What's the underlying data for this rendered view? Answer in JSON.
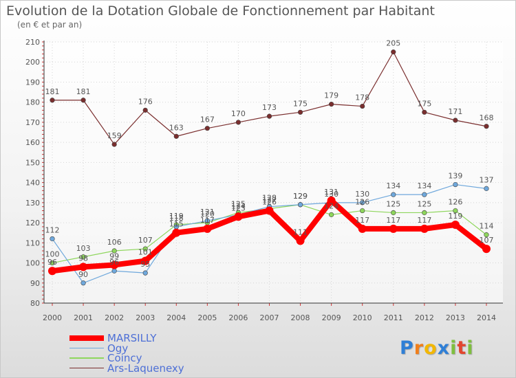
{
  "chart_data": {
    "type": "line",
    "title": "Evolution de la Dotation Globale de Fonctionnement par Habitant",
    "subtitle": "(en € et par an)",
    "xlabel": "",
    "ylabel": "",
    "ylim": [
      80,
      210
    ],
    "yticks": [
      80,
      90,
      100,
      110,
      120,
      130,
      140,
      150,
      160,
      170,
      180,
      190,
      200,
      210
    ],
    "categories": [
      "2000",
      "2001",
      "2002",
      "2003",
      "2004",
      "2005",
      "2006",
      "2007",
      "2008",
      "2009",
      "2010",
      "2011",
      "2012",
      "2013",
      "2014"
    ],
    "legend_position": "bottom-left",
    "series": [
      {
        "name": "Ars-Laquenexy",
        "color": "#7a2e2e",
        "width": 1.2,
        "values": [
          181,
          181,
          159,
          176,
          163,
          167,
          170,
          173,
          175,
          179,
          178,
          205,
          175,
          171,
          168
        ]
      },
      {
        "name": "Coincy",
        "color": "#8ed65c",
        "width": 1.2,
        "values": [
          100,
          103,
          106,
          107,
          119,
          120,
          125,
          127,
          129,
          124,
          126,
          125,
          125,
          126,
          114
        ]
      },
      {
        "name": "Ogy",
        "color": "#6fa8dc",
        "width": 1.2,
        "values": [
          112,
          90,
          96,
          95,
          118,
          121,
          124,
          128,
          129,
          130,
          130,
          134,
          134,
          139,
          137
        ]
      },
      {
        "name": "MARSILLY",
        "color": "#ff0000",
        "width": 8,
        "values": [
          96,
          98,
          99,
          101,
          115,
          117,
          123,
          126,
          111,
          131,
          117,
          117,
          117,
          119,
          107
        ]
      }
    ],
    "value_labels": [
      [
        "181",
        "181",
        "159",
        "176",
        "163",
        "167",
        "170",
        "173",
        "175",
        "179",
        "178",
        "205",
        "175",
        "171",
        "168"
      ],
      [
        "100",
        "103",
        "106",
        "107",
        "119",
        "120",
        "125",
        "127",
        "129",
        "124",
        "126",
        "125",
        "125",
        "126",
        "114"
      ],
      [
        "112",
        "90",
        "96",
        "95",
        "118",
        "121",
        "124",
        "128",
        "129",
        "130",
        "130",
        "134",
        "134",
        "139",
        "137"
      ],
      [
        "96",
        "98",
        "99",
        "101",
        "115",
        "117",
        "123",
        "126",
        "111",
        "131",
        "117",
        "117",
        "117",
        "119",
        "107"
      ]
    ]
  },
  "legend": [
    {
      "label": "MARSILLY",
      "color": "#ff0000",
      "width": 8
    },
    {
      "label": "Ogy",
      "color": "#6fa8dc",
      "width": 1.5
    },
    {
      "label": "Coincy",
      "color": "#8ed65c",
      "width": 1.5
    },
    {
      "label": "Ars-Laquenexy",
      "color": "#7a2e2e",
      "width": 1.5
    }
  ],
  "brand": {
    "letters": [
      "P",
      "r",
      "o",
      "x",
      "i",
      "t",
      "i"
    ],
    "colors": [
      "#2f7fd6",
      "#f07f1c",
      "#f2b705",
      "#2f7fd6",
      "#7fbf3f",
      "#e2462f",
      "#7fbf3f"
    ]
  }
}
